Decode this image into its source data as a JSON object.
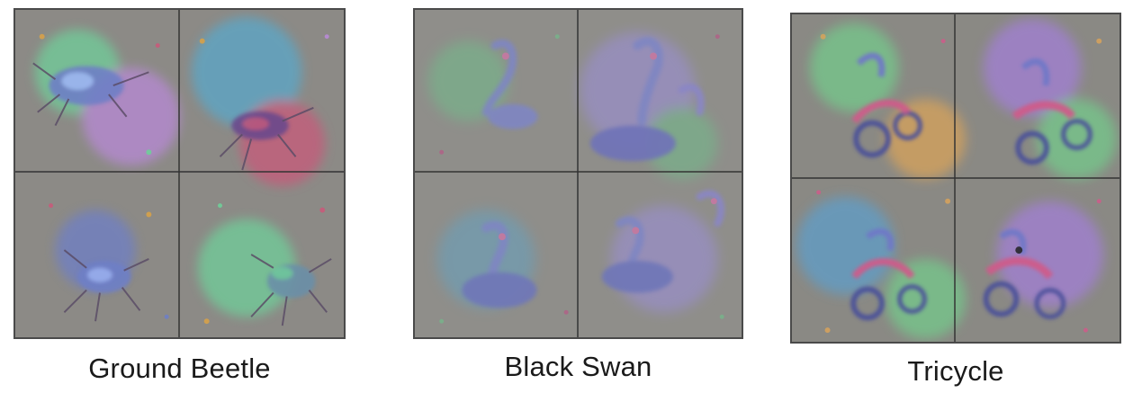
{
  "figure": {
    "panels": [
      {
        "id": "ground-beetle",
        "caption": "Ground Beetle",
        "subject": "beetle",
        "palette": [
          "#8c8a86",
          "#6e7fc6",
          "#c85a7a",
          "#6fcf9a",
          "#d6a14a",
          "#b889d6",
          "#5aa7c9"
        ]
      },
      {
        "id": "black-swan",
        "caption": "Black Swan",
        "subject": "swan",
        "palette": [
          "#8f8e8a",
          "#7f86c2",
          "#b25f86",
          "#76b58a",
          "#9a8fcf",
          "#6c9fb8",
          "#c07aa0"
        ]
      },
      {
        "id": "tricycle",
        "caption": "Tricycle",
        "subject": "tricycle",
        "palette": [
          "#8a8984",
          "#6f78c8",
          "#cf5c8a",
          "#74c98b",
          "#d8a35a",
          "#a27fd6",
          "#5f9ec9"
        ]
      }
    ]
  }
}
